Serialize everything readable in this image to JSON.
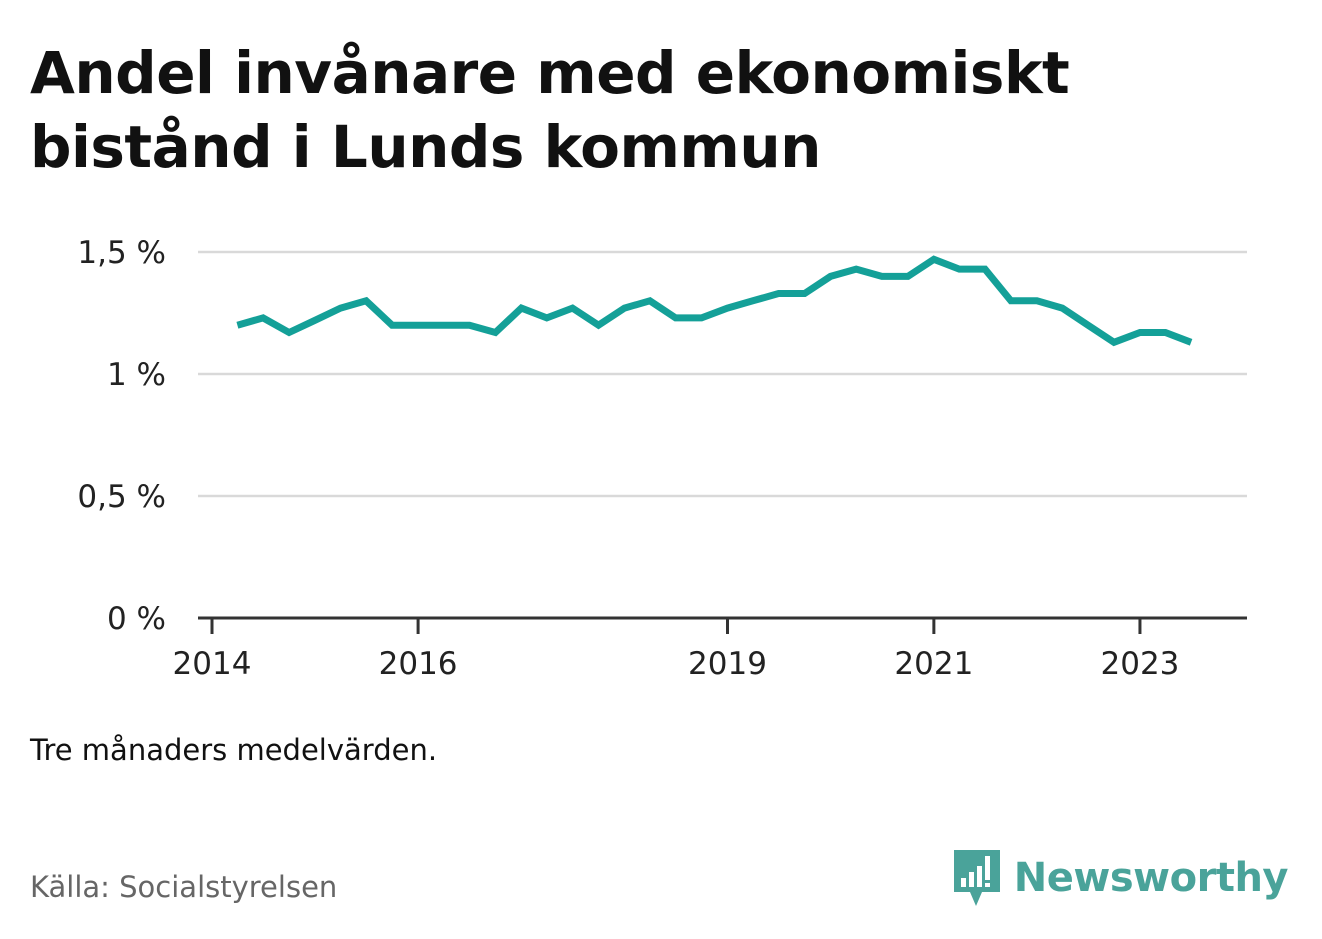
{
  "header": {
    "title": "Andel invånare med ekonomiskt bistånd i Lunds kommun"
  },
  "footer": {
    "note": "Tre månaders medelvärden.",
    "source": "Källa: Socialstyrelsen",
    "brand": "Newsworthy"
  },
  "colors": {
    "line": "#14a098",
    "grid": "#d9d9d9",
    "axis": "#333333",
    "brand": "#4aa39a"
  },
  "chart_data": {
    "type": "line",
    "title": "Andel invånare med ekonomiskt bistånd i Lunds kommun",
    "xlabel": "",
    "ylabel": "",
    "ylim": [
      0,
      1.5
    ],
    "xlim": [
      "2014-01-01",
      "2024-01-01"
    ],
    "y_ticks": [
      {
        "value": 0,
        "label": "0 %"
      },
      {
        "value": 0.5,
        "label": "0,5 %"
      },
      {
        "value": 1,
        "label": "1 %"
      },
      {
        "value": 1.5,
        "label": "1,5 %"
      }
    ],
    "x_ticks": [
      {
        "date": "2014-01-01",
        "label": "2014"
      },
      {
        "date": "2016-01-01",
        "label": "2016"
      },
      {
        "date": "2019-01-01",
        "label": "2019"
      },
      {
        "date": "2021-01-01",
        "label": "2021"
      },
      {
        "date": "2023-01-01",
        "label": "2023"
      }
    ],
    "grid": true,
    "series": [
      {
        "color": "#14a098",
        "points": [
          {
            "x": "2014-04-01",
            "y": 1.2
          },
          {
            "x": "2014-07-01",
            "y": 1.23
          },
          {
            "x": "2014-10-01",
            "y": 1.17
          },
          {
            "x": "2015-01-01",
            "y": 1.22
          },
          {
            "x": "2015-04-01",
            "y": 1.27
          },
          {
            "x": "2015-07-01",
            "y": 1.3
          },
          {
            "x": "2015-10-01",
            "y": 1.2
          },
          {
            "x": "2016-01-01",
            "y": 1.2
          },
          {
            "x": "2016-04-01",
            "y": 1.2
          },
          {
            "x": "2016-07-01",
            "y": 1.2
          },
          {
            "x": "2016-10-01",
            "y": 1.17
          },
          {
            "x": "2017-01-01",
            "y": 1.27
          },
          {
            "x": "2017-04-01",
            "y": 1.23
          },
          {
            "x": "2017-07-01",
            "y": 1.27
          },
          {
            "x": "2017-10-01",
            "y": 1.2
          },
          {
            "x": "2018-01-01",
            "y": 1.27
          },
          {
            "x": "2018-04-01",
            "y": 1.3
          },
          {
            "x": "2018-07-01",
            "y": 1.23
          },
          {
            "x": "2018-10-01",
            "y": 1.23
          },
          {
            "x": "2019-01-01",
            "y": 1.27
          },
          {
            "x": "2019-04-01",
            "y": 1.3
          },
          {
            "x": "2019-07-01",
            "y": 1.33
          },
          {
            "x": "2019-10-01",
            "y": 1.33
          },
          {
            "x": "2020-01-01",
            "y": 1.4
          },
          {
            "x": "2020-04-01",
            "y": 1.43
          },
          {
            "x": "2020-07-01",
            "y": 1.4
          },
          {
            "x": "2020-10-01",
            "y": 1.4
          },
          {
            "x": "2021-01-01",
            "y": 1.47
          },
          {
            "x": "2021-04-01",
            "y": 1.43
          },
          {
            "x": "2021-07-01",
            "y": 1.43
          },
          {
            "x": "2021-10-01",
            "y": 1.3
          },
          {
            "x": "2022-01-01",
            "y": 1.3
          },
          {
            "x": "2022-04-01",
            "y": 1.27
          },
          {
            "x": "2022-07-01",
            "y": 1.2
          },
          {
            "x": "2022-10-01",
            "y": 1.13
          },
          {
            "x": "2023-01-01",
            "y": 1.17
          },
          {
            "x": "2023-04-01",
            "y": 1.17
          },
          {
            "x": "2023-07-01",
            "y": 1.13
          }
        ]
      }
    ]
  }
}
